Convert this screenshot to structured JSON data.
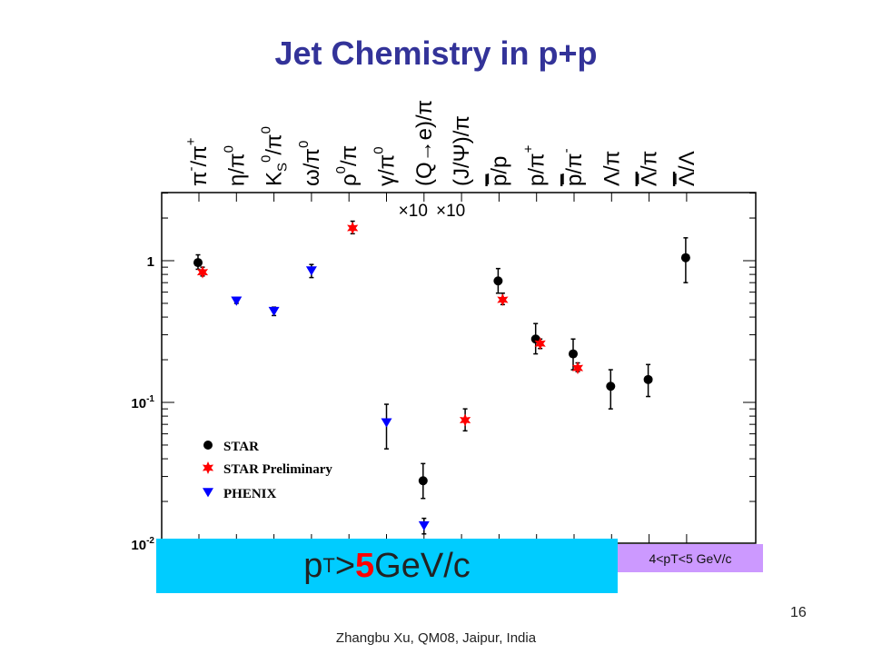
{
  "slide": {
    "title": "Jet Chemistry in p+p",
    "pt_box": {
      "prefix": "p",
      "sub": "T",
      "op": ">",
      "value": "5",
      "unit": " GeV/c"
    },
    "pt_range_label": "4<pT<5 GeV/c",
    "page_number": "16",
    "footer": "Zhangbu Xu, QM08, Jaipur, India",
    "colors": {
      "title": "#333399",
      "star": "#000000",
      "star_prelim": "#ff0000",
      "phenix": "#0000ff",
      "pt_box": "#00ccff",
      "pt_range": "#cc99ff"
    }
  },
  "chart_data": {
    "type": "scatter",
    "y_scale": "log",
    "ylim": [
      0.01,
      3
    ],
    "y_ticks": [
      {
        "value": 1,
        "label": "1"
      },
      {
        "value": 0.1,
        "label": "10",
        "exp": "-1"
      },
      {
        "value": 0.01,
        "label": "10",
        "exp": "-2"
      }
    ],
    "categories": [
      {
        "num": "π",
        "num_sup": "-",
        "den": "π",
        "den_sup": "+"
      },
      {
        "num": "η",
        "den": "π",
        "den_sup": "0"
      },
      {
        "num": "K",
        "num_sub": "S",
        "num_sup": "0",
        "den": "π",
        "den_sup": "0"
      },
      {
        "num": "ω",
        "den": "π",
        "den_sup": "0"
      },
      {
        "num": "ρ",
        "num_sup": "0",
        "den": "π"
      },
      {
        "num": "γ",
        "den": "π",
        "den_sup": "0"
      },
      {
        "num": "(Q→e)",
        "den": "π"
      },
      {
        "num": "(J/Ψ)",
        "den": "π"
      },
      {
        "num": "p",
        "bar": true,
        "den": "p"
      },
      {
        "num": "p",
        "den": "π",
        "den_sup": "+"
      },
      {
        "num": "p",
        "bar": true,
        "den": "π",
        "den_sup": "-"
      },
      {
        "num": "Λ",
        "den": "π"
      },
      {
        "num": "Λ",
        "bar": true,
        "den": "π"
      },
      {
        "num": "Λ",
        "bar": true,
        "den": "Λ"
      }
    ],
    "annotations": [
      {
        "category": 6,
        "text": "×10"
      },
      {
        "category": 7,
        "text": "×10"
      }
    ],
    "legend": {
      "placement": "bottom-left",
      "entries": [
        {
          "series": 0,
          "label": "STAR"
        },
        {
          "series": 1,
          "label": "STAR Preliminary"
        },
        {
          "series": 2,
          "label": "PHENIX"
        }
      ]
    },
    "series": [
      {
        "name": "STAR",
        "marker": "circle",
        "color": "#000000",
        "points": [
          {
            "cat": 0,
            "y": 0.97,
            "lo": 0.87,
            "hi": 1.1
          },
          {
            "cat": 6,
            "y": 0.028,
            "lo": 0.021,
            "hi": 0.037
          },
          {
            "cat": 8,
            "y": 0.72,
            "lo": 0.59,
            "hi": 0.88
          },
          {
            "cat": 9,
            "y": 0.28,
            "lo": 0.22,
            "hi": 0.36
          },
          {
            "cat": 10,
            "y": 0.22,
            "lo": 0.17,
            "hi": 0.28
          },
          {
            "cat": 11,
            "y": 0.13,
            "lo": 0.09,
            "hi": 0.17
          },
          {
            "cat": 12,
            "y": 0.145,
            "lo": 0.11,
            "hi": 0.185
          },
          {
            "cat": 13,
            "y": 1.05,
            "lo": 0.7,
            "hi": 1.45
          }
        ]
      },
      {
        "name": "STAR Preliminary",
        "marker": "star",
        "color": "#ff0000",
        "points": [
          {
            "cat": 0,
            "y": 0.83,
            "lo": 0.78,
            "hi": 0.9
          },
          {
            "cat": 4,
            "y": 1.7,
            "lo": 1.55,
            "hi": 1.9
          },
          {
            "cat": 7,
            "y": 0.075,
            "lo": 0.063,
            "hi": 0.09
          },
          {
            "cat": 8,
            "y": 0.53,
            "lo": 0.49,
            "hi": 0.59
          },
          {
            "cat": 9,
            "y": 0.26,
            "lo": 0.24,
            "hi": 0.28
          },
          {
            "cat": 10,
            "y": 0.175,
            "lo": 0.165,
            "hi": 0.19
          }
        ]
      },
      {
        "name": "PHENIX",
        "marker": "triangle-down",
        "color": "#0000ff",
        "points": [
          {
            "cat": 1,
            "y": 0.52,
            "lo": 0.5,
            "hi": 0.54
          },
          {
            "cat": 2,
            "y": 0.44,
            "lo": 0.41,
            "hi": 0.47
          },
          {
            "cat": 3,
            "y": 0.85,
            "lo": 0.76,
            "hi": 0.94
          },
          {
            "cat": 5,
            "y": 0.072,
            "lo": 0.047,
            "hi": 0.097
          },
          {
            "cat": 6,
            "y": 0.0135,
            "lo": 0.0118,
            "hi": 0.0152
          }
        ]
      }
    ]
  }
}
